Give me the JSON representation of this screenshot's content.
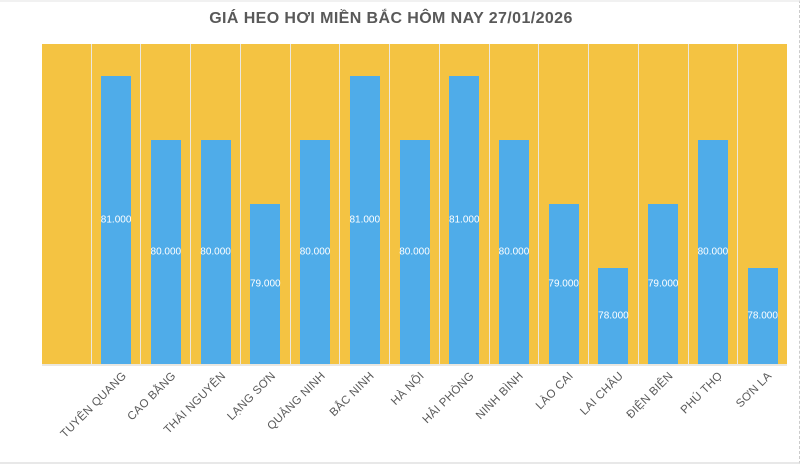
{
  "window": {
    "background": "#FFFFFF"
  },
  "chart_data": {
    "type": "bar",
    "title": "GIÁ HEO HƠI MIỀN BẮC HÔM NAY 27/01/2026",
    "categories": [
      "TUYÊN QUANG",
      "CAO BẰNG",
      "THÁI NGUYÊN",
      "LẠNG SƠN",
      "QUẢNG NINH",
      "BẮC NINH",
      "HÀ NỘI",
      "HẢI PHÒNG",
      "NINH BÌNH",
      "LÀO CAI",
      "LAI CHÂU",
      "ĐIỆN BIÊN",
      "PHÚ THỌ",
      "SƠN LA"
    ],
    "values": [
      81000,
      80000,
      80000,
      79000,
      80000,
      81000,
      80000,
      81000,
      80000,
      79000,
      78000,
      79000,
      80000,
      78000
    ],
    "value_labels": [
      "81.000",
      "80.000",
      "80.000",
      "79.000",
      "80.000",
      "81.000",
      "80.000",
      "81.000",
      "80.000",
      "79.000",
      "78.000",
      "79.000",
      "80.000",
      "78.000"
    ],
    "xlabel": "",
    "ylabel": "",
    "ylim": [
      76500,
      81500
    ],
    "legend": "none",
    "grid": "vertical-gridlines",
    "data_label_position": "inside-center",
    "leading_empty_slots": 1,
    "colors": {
      "bar": "#4FACE9",
      "plot_background": "#F4C342",
      "gridline": "#EAE7E0",
      "title_text": "#595959",
      "axis_label_text": "#595959",
      "data_label_text": "#FFFFFF"
    }
  }
}
